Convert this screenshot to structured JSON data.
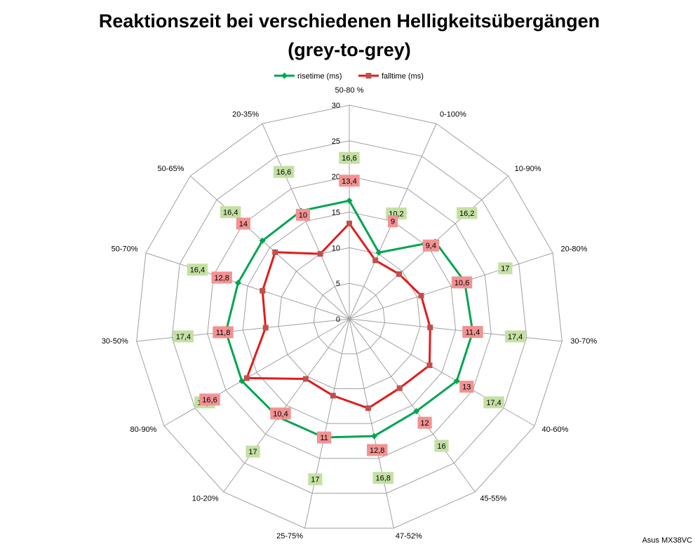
{
  "chart_data": {
    "type": "radar",
    "title": "Reaktionszeit bei verschiedenen Helligkeitsübergängen",
    "subtitle": "(grey-to-grey)",
    "categories": [
      "50-80 %",
      "0-100%",
      "10-90%",
      "20-80%",
      "30-70%",
      "40-60%",
      "45-55%",
      "47-52%",
      "25-75%",
      "10-20%",
      "80-90%",
      "30-50%",
      "50-70%",
      "50-65%",
      "20-35%"
    ],
    "series": [
      {
        "name": "risetime (ms)",
        "marker": "diamond",
        "line_color": "#00a550",
        "marker_color": "#00a550",
        "label_background": "#c4e0a4",
        "values": [
          16.6,
          10.2,
          16.2,
          17,
          17.4,
          17.4,
          16,
          16.8,
          17,
          17,
          17.4,
          17.4,
          16.4,
          16.4,
          16.6
        ],
        "labels": [
          "16,6",
          "10,2",
          "16,2",
          "17",
          "17,4",
          "17,4",
          "16",
          "16,8",
          "17",
          "17",
          "17,4",
          "17,4",
          "16,4",
          "16,4",
          "16,6"
        ]
      },
      {
        "name": "falltime (ms)",
        "marker": "square",
        "line_color": "#e31b1b",
        "marker_color": "#c0504d",
        "label_background": "#f29292",
        "values": [
          13.4,
          9,
          9.4,
          10.6,
          11.4,
          13,
          12,
          12.8,
          11,
          10.4,
          16.6,
          11.8,
          12.8,
          14,
          10
        ],
        "labels": [
          "13,4",
          "9",
          "9,4",
          "10,6",
          "11,4",
          "13",
          "12",
          "12,8",
          "11",
          "10,4",
          "16,6",
          "11,8",
          "12,8",
          "14",
          "10"
        ]
      }
    ],
    "radial_axis": {
      "min": 0,
      "max": 30,
      "ticks": [
        0,
        5,
        10,
        15,
        20,
        25,
        30
      ]
    },
    "grid": true,
    "grid_color": "#a0a0a0",
    "legend": "top",
    "data_labels": true
  },
  "footer_note": "Asus MX38VC"
}
